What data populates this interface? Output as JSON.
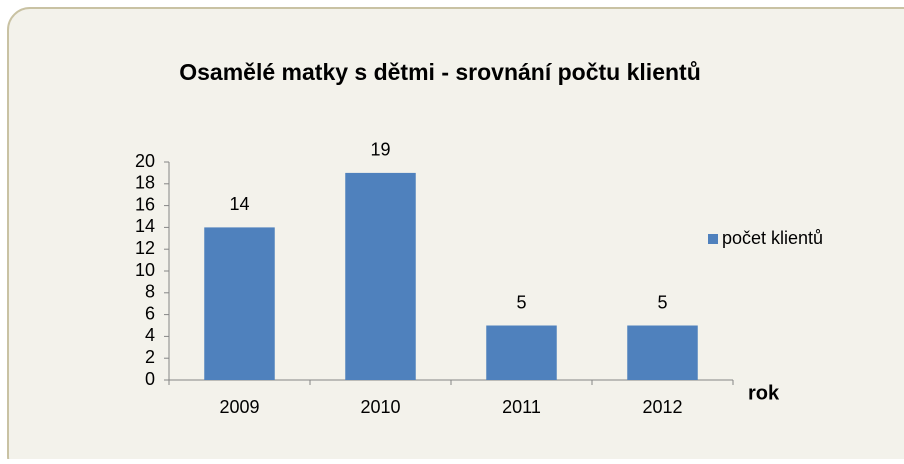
{
  "chart_data": {
    "type": "bar",
    "title": "Osamělé matky s dětmi - srovnání počtu klientů",
    "x_label": "rok",
    "categories": [
      "2009",
      "2010",
      "2011",
      "2012"
    ],
    "series": [
      {
        "name": "počet klientů",
        "color": "#4f81bd",
        "values": [
          14,
          19,
          5,
          5
        ]
      }
    ],
    "ylim": [
      0,
      20
    ],
    "yticks": [
      0,
      2,
      4,
      6,
      8,
      10,
      12,
      14,
      16,
      18,
      20
    ],
    "legend": "right",
    "grid": false,
    "data_labels": true
  }
}
